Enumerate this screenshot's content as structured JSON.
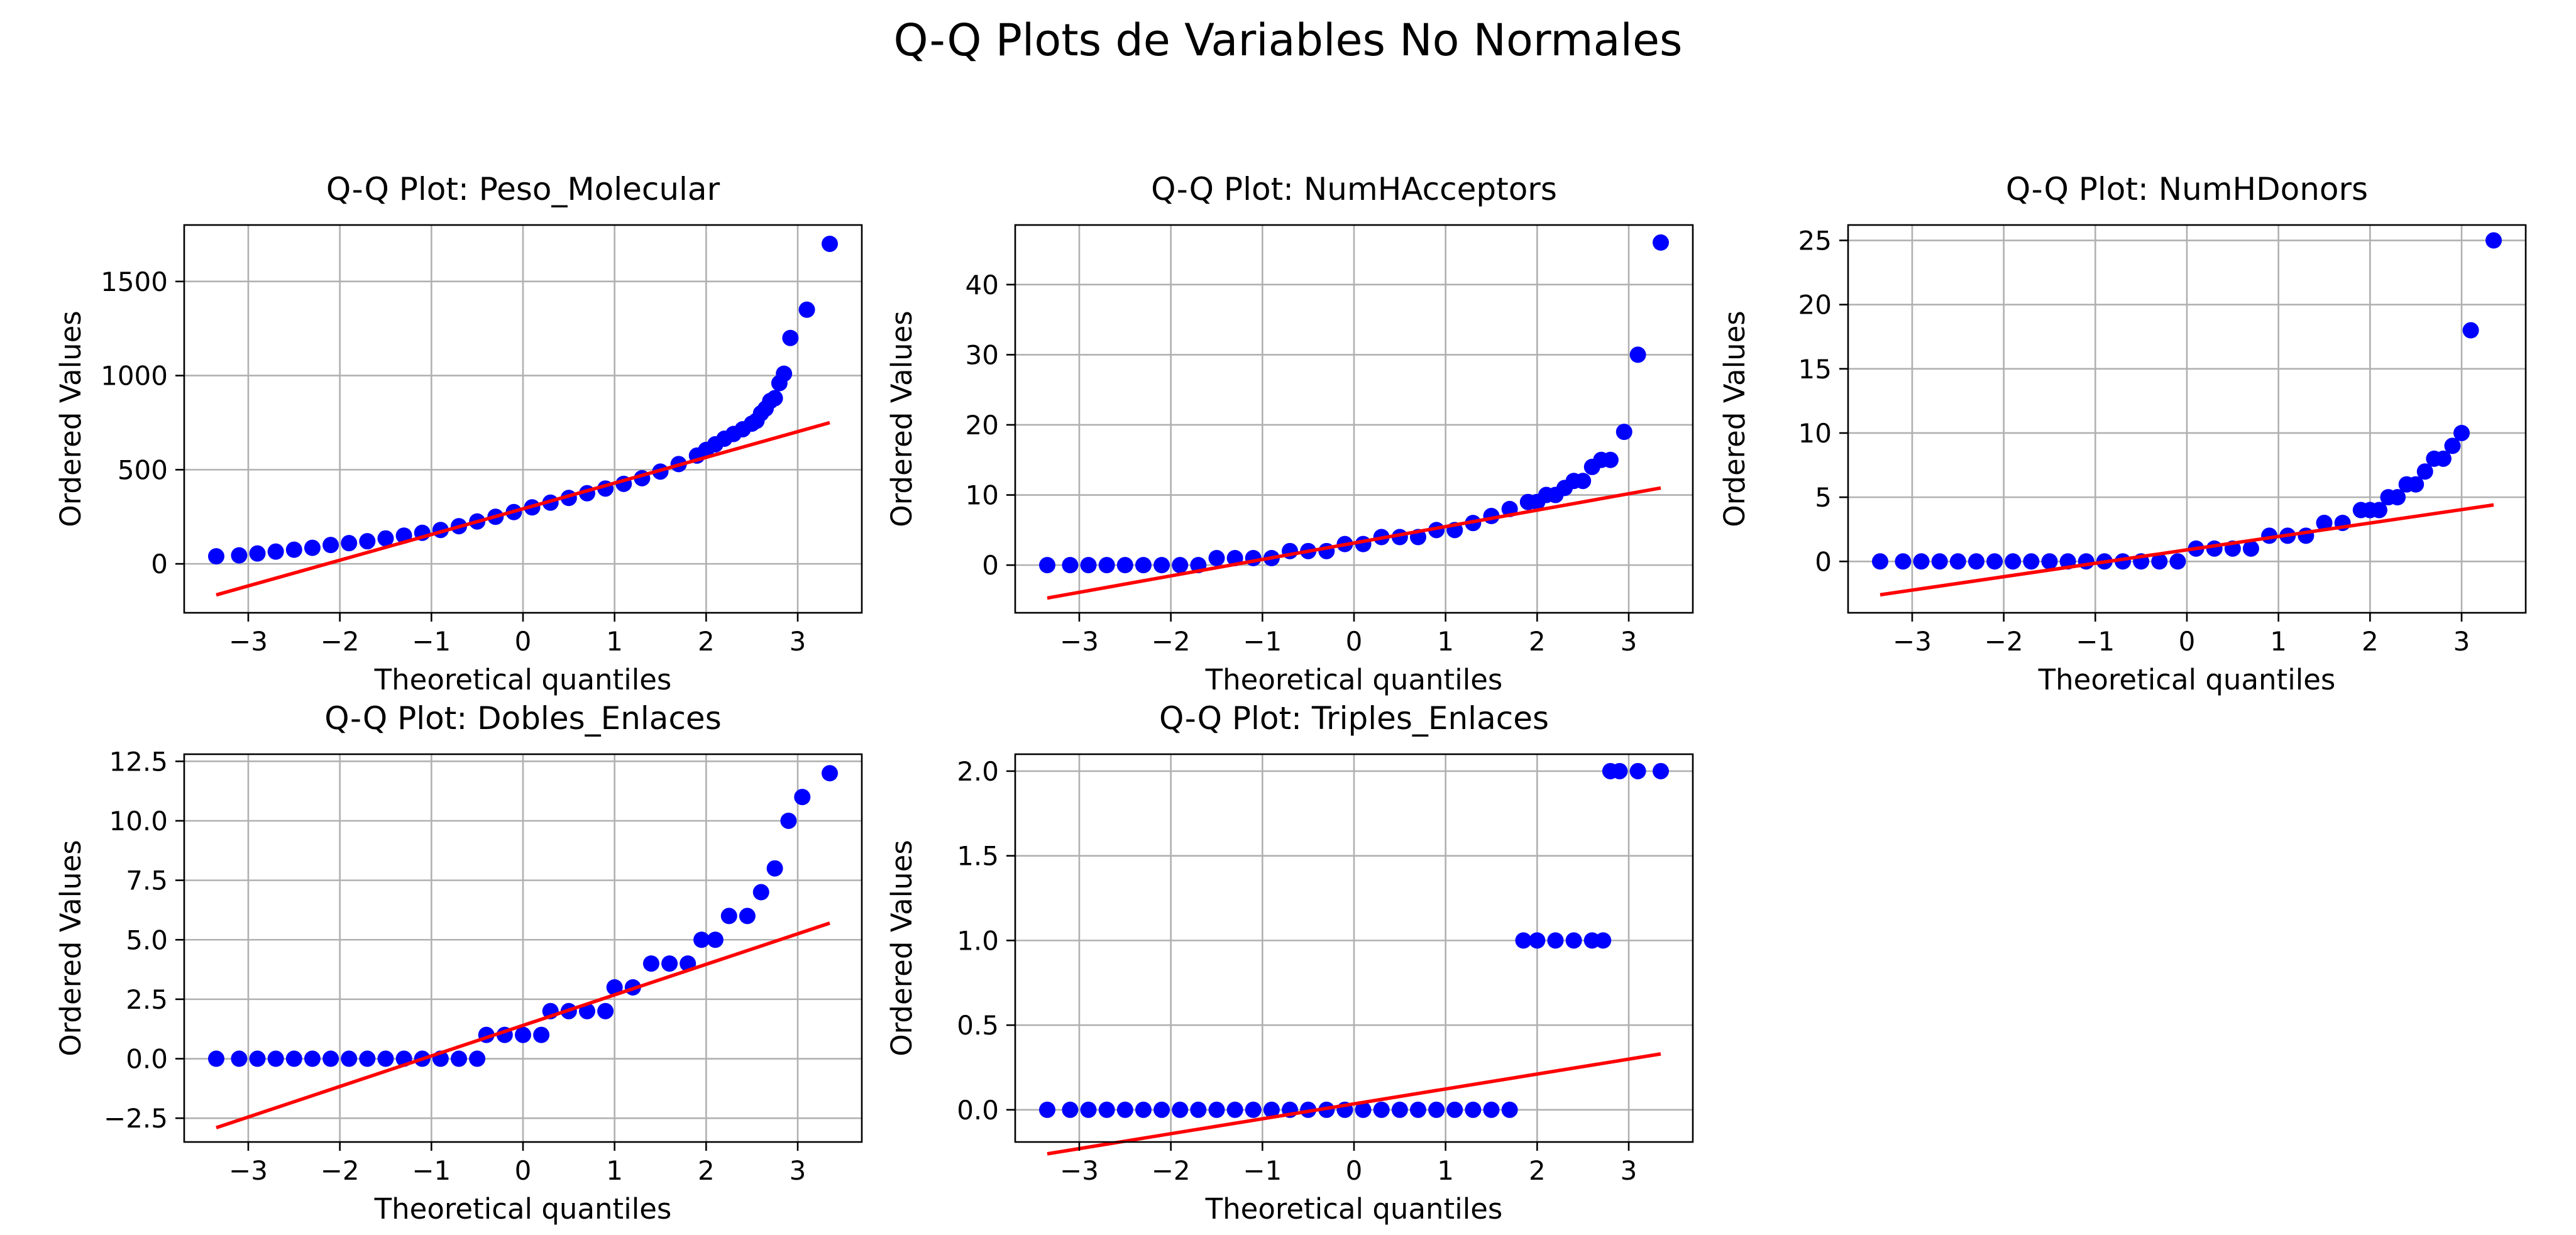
{
  "figure": {
    "title": "Q-Q Plots de Variables No Normales",
    "point_color": "#0000ff",
    "line_color": "#ff0000"
  },
  "chart_data": [
    {
      "type": "scatter",
      "title": "Q-Q Plot: Peso_Molecular",
      "xlabel": "Theoretical quantiles",
      "ylabel": "Ordered Values",
      "xlim": [
        -3.7,
        3.7
      ],
      "ylim": [
        -260,
        1800
      ],
      "xticks": [
        -3,
        -2,
        -1,
        0,
        1,
        2,
        3
      ],
      "yticks": [
        0,
        500,
        1000,
        1500
      ],
      "grid": true,
      "fit_line": {
        "x": [
          -3.35,
          3.35
        ],
        "y": [
          -165,
          750
        ]
      },
      "points": {
        "x": [
          -3.35,
          -3.1,
          -2.9,
          -2.7,
          -2.5,
          -2.3,
          -2.1,
          -1.9,
          -1.7,
          -1.5,
          -1.3,
          -1.1,
          -0.9,
          -0.7,
          -0.5,
          -0.3,
          -0.1,
          0.1,
          0.3,
          0.5,
          0.7,
          0.9,
          1.1,
          1.3,
          1.5,
          1.7,
          1.9,
          2.0,
          2.1,
          2.2,
          2.3,
          2.4,
          2.5,
          2.55,
          2.6,
          2.65,
          2.7,
          2.75,
          2.8,
          2.85,
          2.92,
          3.1,
          3.35
        ],
        "y": [
          40,
          45,
          55,
          65,
          75,
          85,
          100,
          110,
          120,
          135,
          150,
          165,
          180,
          200,
          225,
          250,
          275,
          300,
          325,
          350,
          375,
          400,
          425,
          455,
          490,
          530,
          575,
          605,
          635,
          665,
          690,
          715,
          745,
          760,
          800,
          825,
          865,
          880,
          960,
          1010,
          1200,
          1350,
          1700
        ]
      }
    },
    {
      "type": "scatter",
      "title": "Q-Q Plot: NumHAcceptors",
      "xlabel": "Theoretical quantiles",
      "ylabel": "Ordered Values",
      "xlim": [
        -3.7,
        3.7
      ],
      "ylim": [
        -6.8,
        48.5
      ],
      "xticks": [
        -3,
        -2,
        -1,
        0,
        1,
        2,
        3
      ],
      "yticks": [
        0,
        10,
        20,
        30,
        40
      ],
      "grid": true,
      "fit_line": {
        "x": [
          -3.35,
          3.35
        ],
        "y": [
          -4.7,
          11
        ]
      },
      "points": {
        "x": [
          -3.35,
          -3.1,
          -2.9,
          -2.7,
          -2.5,
          -2.3,
          -2.1,
          -1.9,
          -1.7,
          -1.5,
          -1.3,
          -1.1,
          -0.9,
          -0.7,
          -0.5,
          -0.3,
          -0.1,
          0.1,
          0.3,
          0.5,
          0.7,
          0.9,
          1.1,
          1.3,
          1.5,
          1.7,
          1.9,
          2.0,
          2.1,
          2.2,
          2.3,
          2.4,
          2.5,
          2.6,
          2.7,
          2.8,
          2.95,
          3.1,
          3.35
        ],
        "y": [
          0,
          0,
          0,
          0,
          0,
          0,
          0,
          0,
          0,
          1,
          1,
          1,
          1,
          2,
          2,
          2,
          3,
          3,
          4,
          4,
          4,
          5,
          5,
          6,
          7,
          8,
          9,
          9,
          10,
          10,
          11,
          12,
          12,
          14,
          15,
          15,
          19,
          30,
          46
        ]
      }
    },
    {
      "type": "scatter",
      "title": "Q-Q Plot: NumHDonors",
      "xlabel": "Theoretical quantiles",
      "ylabel": "Ordered Values",
      "xlim": [
        -3.7,
        3.7
      ],
      "ylim": [
        -4,
        26.2
      ],
      "xticks": [
        -3,
        -2,
        -1,
        0,
        1,
        2,
        3
      ],
      "yticks": [
        0,
        5,
        10,
        15,
        20,
        25
      ],
      "grid": true,
      "fit_line": {
        "x": [
          -3.35,
          3.35
        ],
        "y": [
          -2.6,
          4.4
        ]
      },
      "points": {
        "x": [
          -3.35,
          -3.1,
          -2.9,
          -2.7,
          -2.5,
          -2.3,
          -2.1,
          -1.9,
          -1.7,
          -1.5,
          -1.3,
          -1.1,
          -0.9,
          -0.7,
          -0.5,
          -0.3,
          -0.1,
          0.1,
          0.3,
          0.5,
          0.7,
          0.9,
          1.1,
          1.3,
          1.5,
          1.7,
          1.9,
          2.0,
          2.1,
          2.2,
          2.3,
          2.4,
          2.5,
          2.6,
          2.7,
          2.8,
          2.9,
          3.0,
          3.1,
          3.35
        ],
        "y": [
          0,
          0,
          0,
          0,
          0,
          0,
          0,
          0,
          0,
          0,
          0,
          0,
          0,
          0,
          0,
          0,
          0,
          1,
          1,
          1,
          1,
          2,
          2,
          2,
          3,
          3,
          4,
          4,
          4,
          5,
          5,
          6,
          6,
          7,
          8,
          8,
          9,
          10,
          18,
          25
        ]
      }
    },
    {
      "type": "scatter",
      "title": "Q-Q Plot: Dobles_Enlaces",
      "xlabel": "Theoretical quantiles",
      "ylabel": "Ordered Values",
      "xlim": [
        -3.7,
        3.7
      ],
      "ylim": [
        -3.5,
        12.8
      ],
      "xticks": [
        -3,
        -2,
        -1,
        0,
        1,
        2,
        3
      ],
      "yticks": [
        -2.5,
        0.0,
        2.5,
        5.0,
        7.5,
        10.0,
        12.5
      ],
      "grid": true,
      "fit_line": {
        "x": [
          -3.35,
          3.35
        ],
        "y": [
          -2.9,
          5.7
        ]
      },
      "points": {
        "x": [
          -3.35,
          -3.1,
          -2.9,
          -2.7,
          -2.5,
          -2.3,
          -2.1,
          -1.9,
          -1.7,
          -1.5,
          -1.3,
          -1.1,
          -0.9,
          -0.7,
          -0.5,
          -0.4,
          -0.2,
          0.0,
          0.2,
          0.3,
          0.5,
          0.7,
          0.9,
          1.0,
          1.2,
          1.4,
          1.6,
          1.8,
          1.95,
          2.1,
          2.25,
          2.45,
          2.6,
          2.75,
          2.9,
          3.05,
          3.35
        ],
        "y": [
          0,
          0,
          0,
          0,
          0,
          0,
          0,
          0,
          0,
          0,
          0,
          0,
          0,
          0,
          0,
          1,
          1,
          1,
          1,
          2,
          2,
          2,
          2,
          3,
          3,
          4,
          4,
          4,
          5,
          5,
          6,
          6,
          7,
          8,
          10,
          11,
          12
        ]
      }
    },
    {
      "type": "scatter",
      "title": "Q-Q Plot: Triples_Enlaces",
      "xlabel": "Theoretical quantiles",
      "ylabel": "Ordered Values",
      "xlim": [
        -3.7,
        3.7
      ],
      "ylim": [
        -0.19,
        2.1
      ],
      "xticks": [
        -3,
        -2,
        -1,
        0,
        1,
        2,
        3
      ],
      "yticks": [
        0.0,
        0.5,
        1.0,
        1.5,
        2.0
      ],
      "grid": true,
      "fit_line": {
        "x": [
          -3.35,
          3.35
        ],
        "y": [
          -0.26,
          0.33
        ]
      },
      "points": {
        "x": [
          -3.35,
          -3.1,
          -2.9,
          -2.7,
          -2.5,
          -2.3,
          -2.1,
          -1.9,
          -1.7,
          -1.5,
          -1.3,
          -1.1,
          -0.9,
          -0.7,
          -0.5,
          -0.3,
          -0.1,
          0.1,
          0.3,
          0.5,
          0.7,
          0.9,
          1.1,
          1.3,
          1.5,
          1.7,
          1.85,
          2.0,
          2.2,
          2.4,
          2.6,
          2.72,
          2.8,
          2.9,
          3.1,
          3.35
        ],
        "y": [
          0,
          0,
          0,
          0,
          0,
          0,
          0,
          0,
          0,
          0,
          0,
          0,
          0,
          0,
          0,
          0,
          0,
          0,
          0,
          0,
          0,
          0,
          0,
          0,
          0,
          0,
          1,
          1,
          1,
          1,
          1,
          1,
          2,
          2,
          2,
          2
        ]
      }
    }
  ]
}
